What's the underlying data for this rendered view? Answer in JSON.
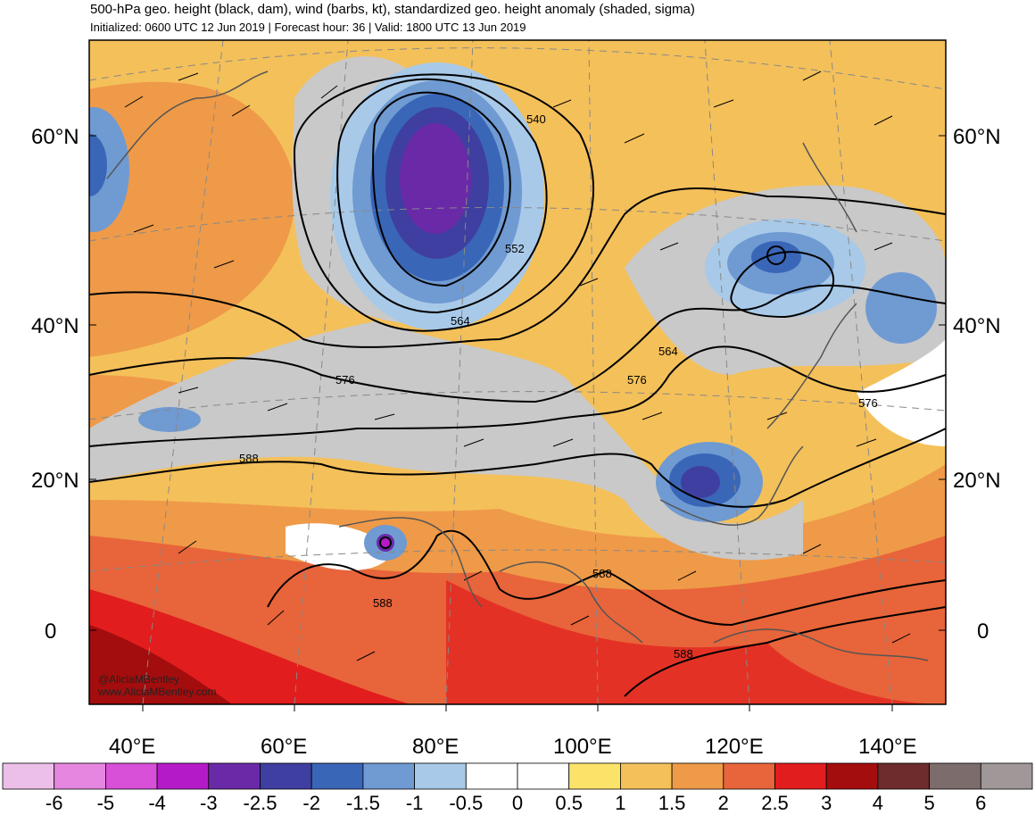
{
  "header": {
    "title": "500-hPa geo. height (black, dam), wind (barbs, kt), standardized geo. height anomaly (shaded, sigma)",
    "subtitle": "Initialized: 0600 UTC 12 Jun 2019 | Forecast hour: 36 | Valid: 1800 UTC 13 Jun 2019"
  },
  "axes": {
    "lat_labels": [
      "60°N",
      "40°N",
      "20°N",
      "0"
    ],
    "lon_labels": [
      "40°E",
      "60°E",
      "80°E",
      "100°E",
      "120°E",
      "140°E"
    ]
  },
  "contour_labels": [
    "540",
    "552",
    "564",
    "564",
    "576",
    "576",
    "576",
    "588",
    "588",
    "588",
    "588"
  ],
  "credit": {
    "handle": "@AliciaMBentley",
    "site": "www.AliciaMBentley.com"
  },
  "colorbar": {
    "labels": [
      "-6",
      "-5",
      "-4",
      "-3",
      "-2.5",
      "-2",
      "-1.5",
      "-1",
      "-0.5",
      "0",
      "0.5",
      "1",
      "1.5",
      "2",
      "2.5",
      "3",
      "4",
      "5",
      "6"
    ],
    "colors": [
      "#ecbfe8",
      "#e586e0",
      "#d84fd8",
      "#b51ac8",
      "#6a2aa8",
      "#3e3fa0",
      "#3a66b8",
      "#6f9ad2",
      "#a8c9e8",
      "#ffffff",
      "#ffffff",
      "#fbe36a",
      "#f4c05a",
      "#ef9a48",
      "#e8643a",
      "#e11d1d",
      "#a40d0d",
      "#6e2c2c",
      "#7d6c6c",
      "#a09898"
    ]
  }
}
